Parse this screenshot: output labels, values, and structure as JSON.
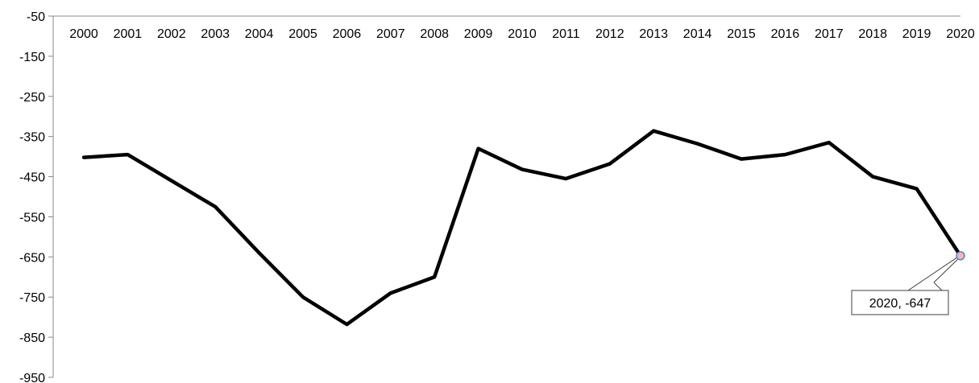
{
  "chart_data": {
    "type": "line",
    "title": "",
    "xlabel": "",
    "ylabel": "",
    "x": [
      "2000",
      "2001",
      "2002",
      "2003",
      "2004",
      "2005",
      "2006",
      "2007",
      "2008",
      "2009",
      "2010",
      "2011",
      "2012",
      "2013",
      "2014",
      "2015",
      "2016",
      "2017",
      "2018",
      "2019",
      "2020"
    ],
    "series": [
      {
        "values": [
          -402,
          -395,
          -460,
          -525,
          -640,
          -750,
          -818,
          -740,
          -700,
          -380,
          -432,
          -455,
          -418,
          -336,
          -368,
          -406,
          -395,
          -365,
          -450,
          -480,
          -647
        ],
        "color": "#000000"
      }
    ],
    "ylim": [
      -950,
      -50
    ],
    "yticks": [
      -50,
      -150,
      -250,
      -350,
      -450,
      -550,
      -650,
      -750,
      -850,
      -950
    ],
    "x_axis_position": "top",
    "grid": false,
    "legend": "none",
    "annotation": {
      "text": "2020, -647",
      "marker_color": "#f4b7b0",
      "marker_edge": "#5b7fd6"
    }
  }
}
